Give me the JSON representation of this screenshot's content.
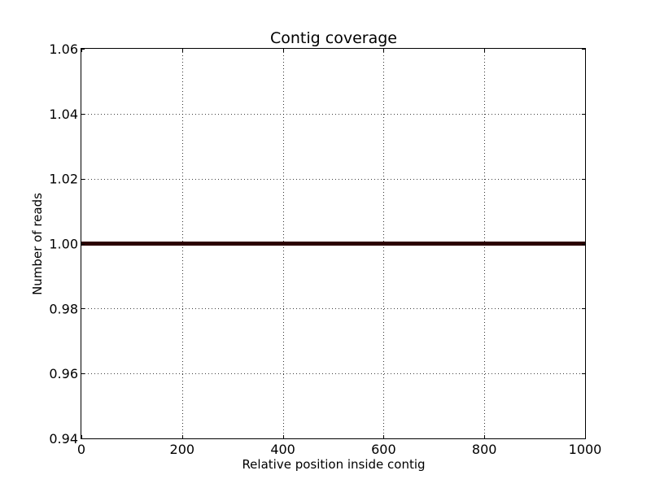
{
  "chart_data": {
    "type": "line",
    "title": "Contig coverage",
    "xlabel": "Relative position inside contig",
    "ylabel": "Number of reads",
    "xlim": [
      0,
      1000
    ],
    "ylim": [
      0.94,
      1.06
    ],
    "x_ticks": [
      0,
      200,
      400,
      600,
      800,
      1000
    ],
    "x_tick_labels": [
      "0",
      "200",
      "400",
      "600",
      "800",
      "1000"
    ],
    "y_ticks": [
      0.94,
      0.96,
      0.98,
      1.0,
      1.02,
      1.04,
      1.06
    ],
    "y_tick_labels": [
      "0.94",
      "0.96",
      "0.98",
      "1.00",
      "1.02",
      "1.04",
      "1.06"
    ],
    "grid": true,
    "series": [
      {
        "color": "#2b0000",
        "x": [
          0,
          1000
        ],
        "y": [
          1.0,
          1.0
        ]
      }
    ]
  }
}
